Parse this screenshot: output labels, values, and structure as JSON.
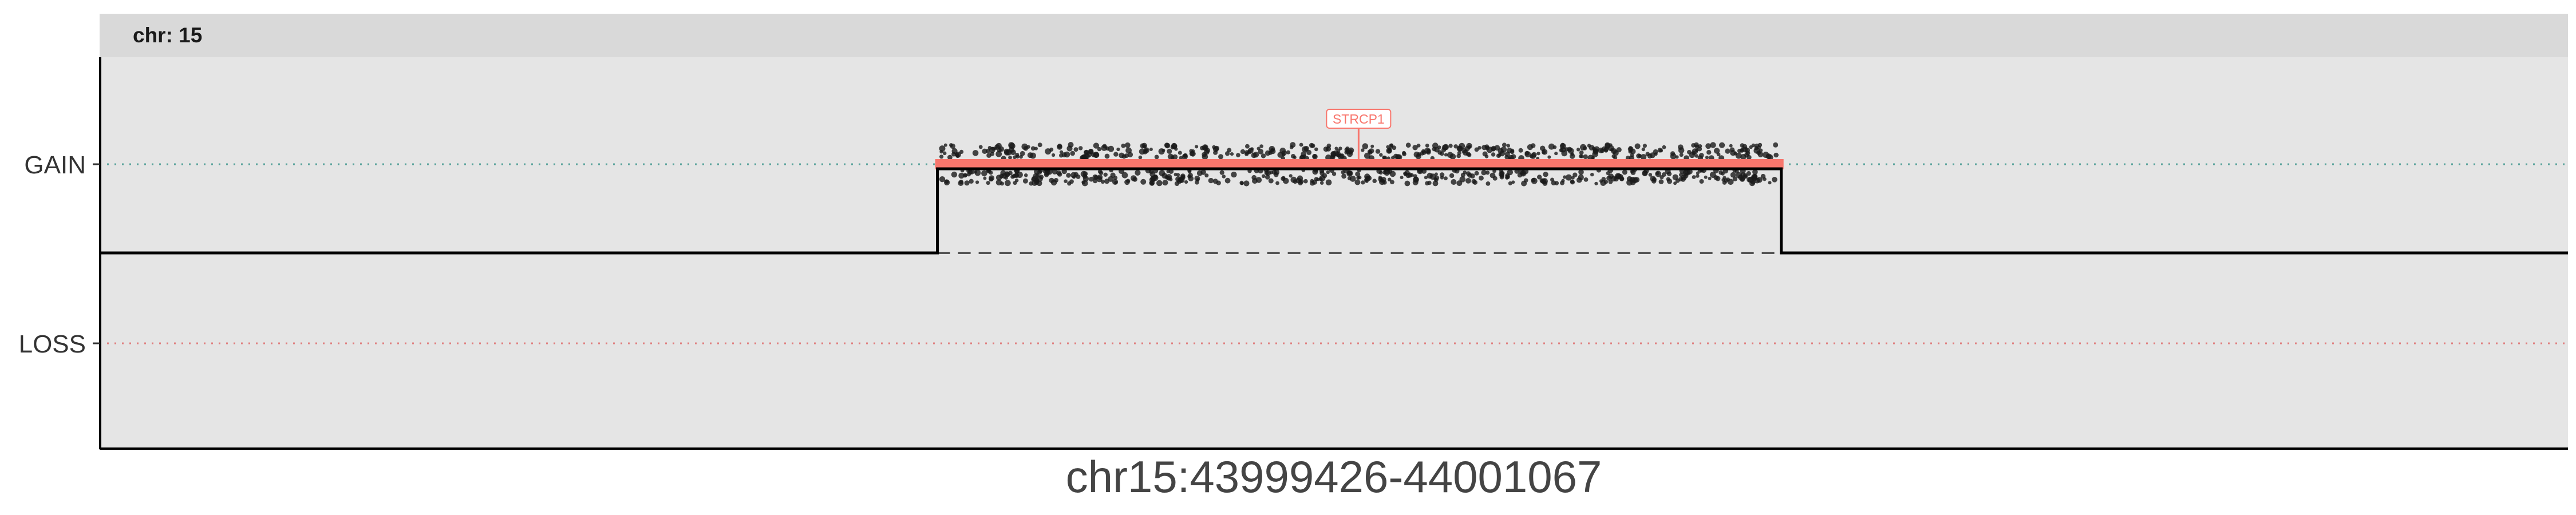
{
  "chart_data": {
    "type": "scatter",
    "facet_label": "chr: 15",
    "xlabel": "chr15:43999426-44001067",
    "ylabel": "",
    "y_categories": [
      "GAIN",
      "LOSS"
    ],
    "x_range": [
      43999426,
      44001067
    ],
    "segment": {
      "start": 43999983,
      "end": 44000544,
      "state": "GAIN",
      "baseline_state": "neutral"
    },
    "gene_annotation": {
      "name": "STRCP1",
      "x": 44000263
    },
    "points_note": "dense cloud of marker points around GAIN level across segment",
    "grid": true,
    "legend": "none",
    "colors": {
      "panel_bg": "#e5e5e5",
      "strip_bg": "#d9d9d9",
      "gain_line": "#5aa39c",
      "loss_line": "#e08080",
      "segment": "#f8766d",
      "points": "#1a1a1a",
      "step_line": "#000000"
    }
  }
}
